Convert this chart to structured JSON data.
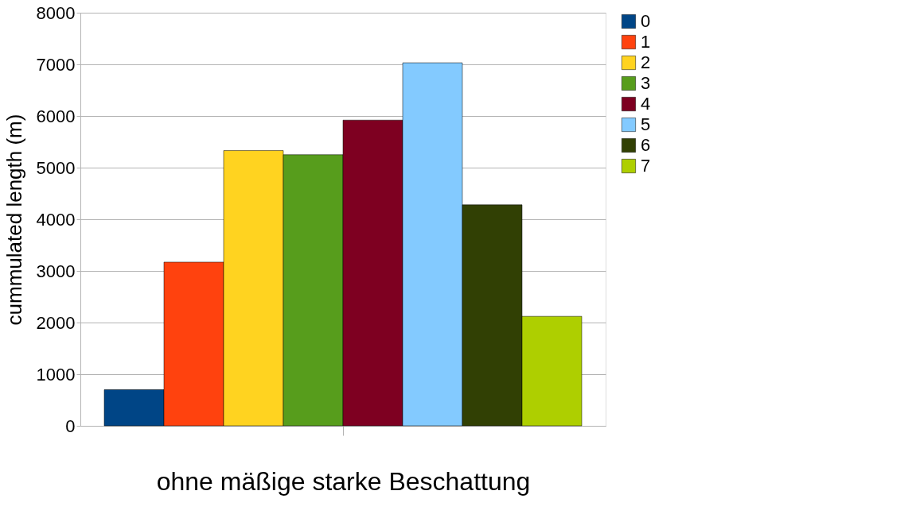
{
  "chart_data": {
    "type": "bar",
    "xlabel": "ohne           mäßige           starke  Beschattung",
    "ylabel": "cummulated length (m)",
    "categories": [
      null
    ],
    "series": [
      {
        "name": "0",
        "color": "#004586",
        "values": [
          700
        ]
      },
      {
        "name": "1",
        "color": "#ff420e",
        "values": [
          3170
        ]
      },
      {
        "name": "2",
        "color": "#ffd320",
        "values": [
          5330
        ]
      },
      {
        "name": "3",
        "color": "#579d1c",
        "values": [
          5250
        ]
      },
      {
        "name": "4",
        "color": "#7e0021",
        "values": [
          5920
        ]
      },
      {
        "name": "5",
        "color": "#83caff",
        "values": [
          7030
        ]
      },
      {
        "name": "6",
        "color": "#314004",
        "values": [
          4280
        ]
      },
      {
        "name": "7",
        "color": "#aecf00",
        "values": [
          2120
        ]
      }
    ],
    "ylim": [
      0,
      8000
    ],
    "yticks": [
      0,
      1000,
      2000,
      3000,
      4000,
      5000,
      6000,
      7000,
      8000
    ],
    "grid": "y",
    "legend": "right"
  }
}
